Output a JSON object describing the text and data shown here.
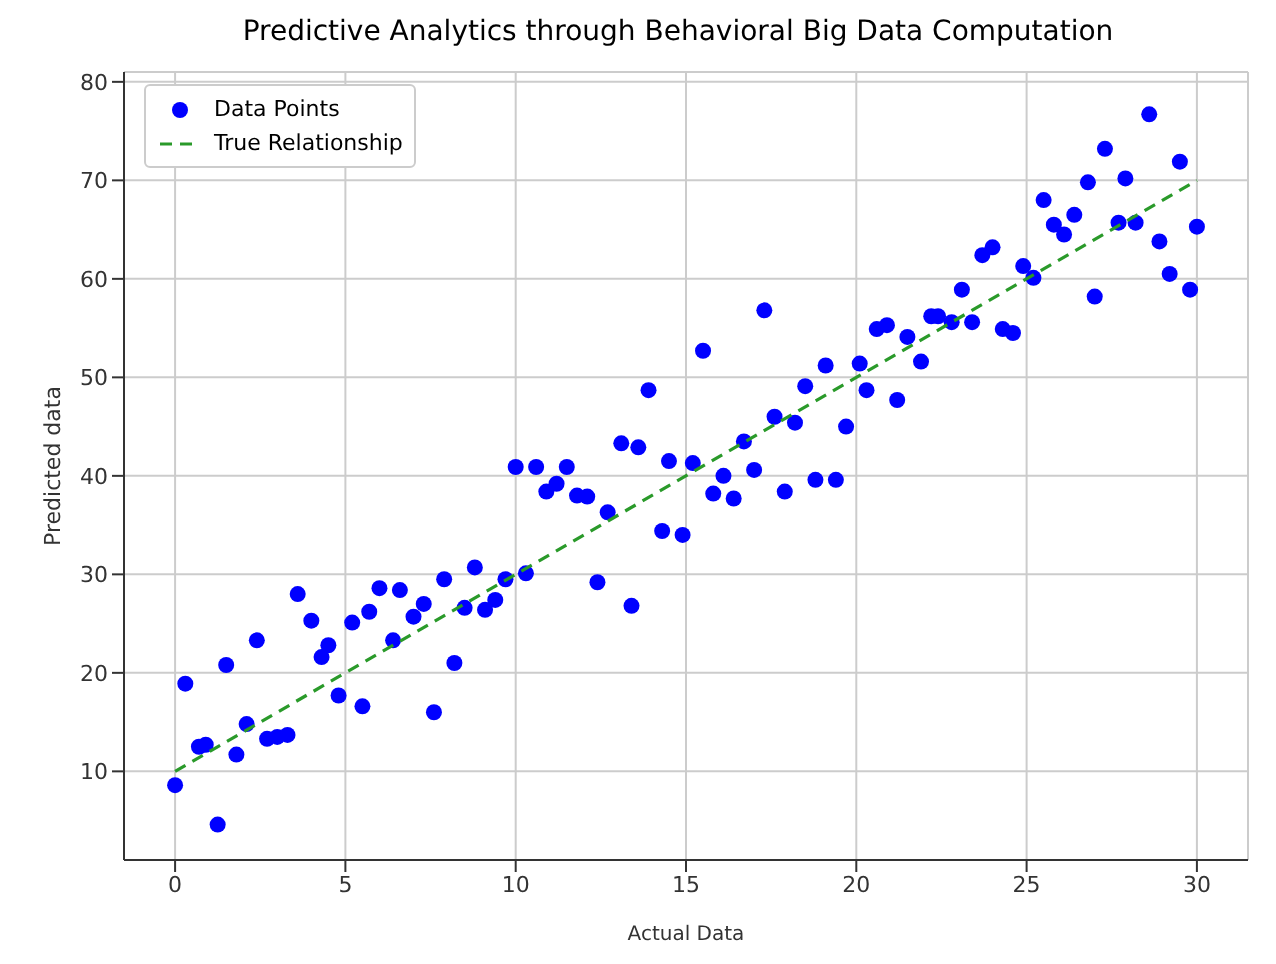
{
  "chart_data": {
    "type": "scatter",
    "title": "Predictive Analytics through Behavioral Big Data Computation",
    "xlabel": "Actual Data",
    "ylabel": "Predicted data",
    "xlim": [
      -1.5,
      31.5
    ],
    "ylim": [
      1,
      81
    ],
    "xticks": [
      0,
      5,
      10,
      15,
      20,
      25,
      30
    ],
    "yticks": [
      10,
      20,
      30,
      40,
      50,
      60,
      70,
      80
    ],
    "grid": true,
    "legend": "top left",
    "series": [
      {
        "name": "Data Points",
        "type": "scatter",
        "color": "#0000ff",
        "marker": "circle",
        "x": [
          0,
          0.3,
          0.7,
          0.9,
          1.25,
          1.5,
          1.8,
          2.1,
          2.4,
          2.7,
          3.0,
          3.3,
          3.6,
          4.0,
          4.3,
          4.5,
          4.8,
          5.2,
          5.5,
          5.7,
          6.0,
          6.4,
          6.6,
          7.0,
          7.3,
          7.6,
          7.9,
          8.2,
          8.5,
          8.8,
          9.1,
          9.4,
          9.7,
          10.0,
          10.3,
          10.6,
          10.9,
          11.2,
          11.5,
          11.8,
          12.1,
          12.4,
          12.7,
          13.1,
          13.4,
          13.6,
          13.9,
          14.3,
          14.5,
          14.9,
          15.2,
          15.5,
          15.8,
          16.1,
          16.4,
          16.7,
          17.0,
          17.3,
          17.6,
          17.9,
          18.2,
          18.5,
          18.8,
          19.1,
          19.4,
          19.7,
          20.1,
          20.3,
          20.6,
          20.9,
          21.2,
          21.5,
          21.9,
          22.2,
          22.4,
          22.8,
          23.1,
          23.4,
          23.7,
          24.0,
          24.3,
          24.6,
          24.9,
          25.2,
          25.5,
          25.8,
          26.1,
          26.4,
          26.8,
          27.0,
          27.3,
          27.7,
          27.9,
          28.2,
          28.6,
          28.9,
          29.2,
          29.5,
          29.8,
          30.0
        ],
        "values": [
          8.6,
          18.9,
          12.5,
          12.7,
          4.6,
          20.8,
          11.7,
          14.8,
          23.3,
          13.3,
          13.5,
          13.7,
          28,
          25.3,
          21.6,
          22.8,
          17.7,
          25.1,
          16.6,
          26.2,
          28.6,
          23.3,
          28.4,
          25.7,
          27.0,
          16.0,
          29.5,
          21.0,
          26.6,
          30.7,
          26.4,
          27.4,
          29.5,
          40.9,
          30.1,
          40.9,
          38.4,
          39.2,
          40.9,
          38.0,
          37.9,
          29.2,
          36.3,
          43.3,
          26.8,
          42.9,
          48.7,
          34.4,
          41.5,
          34,
          41.3,
          52.7,
          38.2,
          40,
          37.7,
          43.5,
          40.6,
          56.8,
          46,
          38.4,
          45.4,
          49.1,
          39.6,
          51.2,
          39.6,
          45,
          51.4,
          48.7,
          54.9,
          55.3,
          47.7,
          54.1,
          51.6,
          56.2,
          56.2,
          55.6,
          58.9,
          55.6,
          62.4,
          63.2,
          54.9,
          54.5,
          61.3,
          60.1,
          68,
          65.5,
          64.5,
          66.5,
          69.8,
          58.2,
          73.2,
          65.7,
          70.2,
          65.7,
          76.7,
          63.8,
          60.5,
          71.9,
          58.9,
          65.3
        ]
      },
      {
        "name": "True Relationship",
        "type": "line",
        "color": "#2a9a2a",
        "line_style": "dashed",
        "x": [
          0,
          30
        ],
        "values": [
          10,
          70
        ]
      }
    ]
  }
}
